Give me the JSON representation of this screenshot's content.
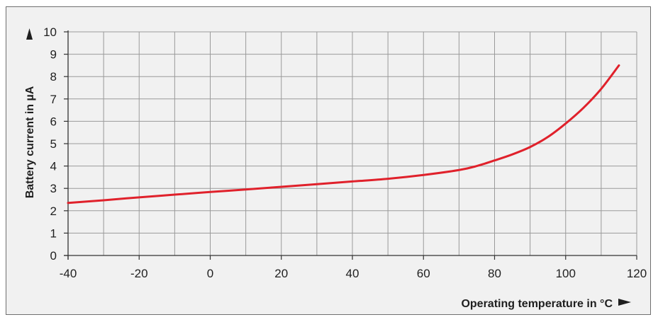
{
  "chart_data": {
    "type": "line",
    "title": "",
    "xlabel": "Operating temperature in °C",
    "ylabel": "Battery current in µA",
    "xlim": [
      -40,
      120
    ],
    "ylim": [
      0,
      10
    ],
    "x_ticks": [
      "-40",
      "-20",
      "0",
      "20",
      "40",
      "60",
      "80",
      "100",
      "120"
    ],
    "y_ticks": [
      "0",
      "1",
      "2",
      "3",
      "4",
      "5",
      "6",
      "7",
      "8",
      "9",
      "10"
    ],
    "grid": true,
    "legend": "none",
    "series": [
      {
        "color": "#e0212b",
        "x": [
          -40,
          -30,
          -20,
          -10,
          0,
          10,
          20,
          30,
          40,
          50,
          60,
          70,
          75,
          80,
          85,
          90,
          95,
          100,
          105,
          110,
          115
        ],
        "y": [
          2.35,
          2.47,
          2.6,
          2.72,
          2.84,
          2.95,
          3.07,
          3.19,
          3.31,
          3.43,
          3.6,
          3.82,
          4.0,
          4.25,
          4.52,
          4.85,
          5.3,
          5.9,
          6.6,
          7.45,
          8.5
        ]
      }
    ]
  }
}
